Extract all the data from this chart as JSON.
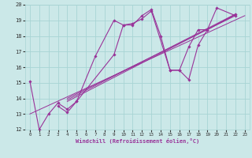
{
  "xlabel": "Windchill (Refroidissement éolien,°C)",
  "bg_color": "#cbe8e8",
  "grid_color": "#a8d4d4",
  "line_color": "#993399",
  "xlim": [
    -0.5,
    23.5
  ],
  "ylim": [
    12,
    20
  ],
  "yticks": [
    12,
    13,
    14,
    15,
    16,
    17,
    18,
    19,
    20
  ],
  "xticks": [
    0,
    1,
    2,
    3,
    4,
    5,
    6,
    7,
    8,
    9,
    10,
    11,
    12,
    13,
    14,
    15,
    16,
    17,
    18,
    19,
    20,
    21,
    22,
    23
  ],
  "lines": [
    [
      0,
      15.1
    ],
    [
      1,
      12.0
    ],
    [
      2,
      13.0
    ],
    [
      3,
      13.7
    ],
    [
      4,
      13.3
    ],
    [
      5,
      13.8
    ]
  ],
  "line1": {
    "x": [
      0,
      1,
      2,
      3,
      4,
      5,
      9,
      10,
      11,
      12,
      13,
      14,
      15,
      16,
      17,
      18,
      19,
      20,
      22
    ],
    "y": [
      15.1,
      12.0,
      13.0,
      13.7,
      13.3,
      13.8,
      16.8,
      18.7,
      18.7,
      19.3,
      19.7,
      18.0,
      15.8,
      15.8,
      17.3,
      18.4,
      18.4,
      19.8,
      19.3
    ]
  },
  "line2": {
    "x": [
      3,
      4,
      5,
      7,
      9,
      10,
      11,
      12,
      13,
      15,
      16,
      17,
      18,
      19,
      22
    ],
    "y": [
      13.5,
      13.1,
      13.8,
      16.7,
      19.0,
      18.7,
      18.8,
      19.1,
      19.6,
      15.8,
      15.8,
      15.2,
      17.4,
      18.4,
      19.4
    ]
  },
  "ref_lines": [
    {
      "x": [
        0,
        23
      ],
      "y": [
        13.0,
        19.3
      ]
    },
    {
      "x": [
        4,
        22
      ],
      "y": [
        13.8,
        19.35
      ]
    },
    {
      "x": [
        4,
        22
      ],
      "y": [
        14.0,
        19.3
      ]
    },
    {
      "x": [
        4,
        22
      ],
      "y": [
        13.9,
        19.4
      ]
    }
  ]
}
